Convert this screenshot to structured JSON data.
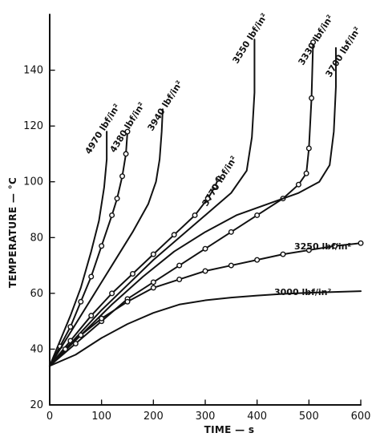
{
  "chart_data": {
    "type": "line",
    "xlabel": "TIME — s",
    "ylabel": "TEMPERATURE — °C",
    "xlim": [
      0,
      600
    ],
    "ylim": [
      20,
      160
    ],
    "xticks": [
      0,
      100,
      200,
      300,
      400,
      500,
      600
    ],
    "yticks": [
      20,
      40,
      60,
      80,
      100,
      120,
      140
    ],
    "series": [
      {
        "name": "4970 lbf/in²",
        "x": [
          0,
          20,
          40,
          60,
          80,
          95,
          105,
          110,
          110
        ],
        "y": [
          34,
          43,
          52,
          62,
          75,
          86,
          98,
          108,
          118
        ],
        "markers": false
      },
      {
        "name": "4380 lbf/in²",
        "x": [
          0,
          20,
          40,
          60,
          80,
          100,
          120,
          130,
          140,
          147,
          150
        ],
        "y": [
          34,
          41,
          48,
          57,
          66,
          77,
          88,
          94,
          102,
          110,
          118
        ],
        "markers": true
      },
      {
        "name": "3940 lbf/in²",
        "x": [
          0,
          40,
          80,
          120,
          160,
          190,
          205,
          212,
          216,
          218
        ],
        "y": [
          34,
          46,
          58,
          70,
          82,
          92,
          100,
          108,
          118,
          126
        ],
        "markers": false
      },
      {
        "name": "3770 lbf/in²",
        "x": [
          0,
          40,
          80,
          120,
          160,
          200,
          240,
          280,
          305,
          318,
          325
        ],
        "y": [
          34,
          43,
          52,
          60,
          67,
          74,
          81,
          88,
          94,
          98,
          101
        ],
        "markers": true
      },
      {
        "name": "3550 lbf/in²",
        "x": [
          0,
          50,
          100,
          150,
          200,
          250,
          300,
          350,
          380,
          390,
          395,
          395
        ],
        "y": [
          34,
          44,
          54,
          63,
          72,
          80,
          88,
          96,
          104,
          116,
          132,
          151
        ],
        "markers": false
      },
      {
        "name": "3330 lbf/in²",
        "x": [
          0,
          50,
          100,
          150,
          200,
          250,
          300,
          350,
          400,
          450,
          480,
          495,
          500,
          505,
          508
        ],
        "y": [
          34,
          42,
          50,
          58,
          64,
          70,
          76,
          82,
          88,
          94,
          99,
          103,
          112,
          130,
          150
        ],
        "markers": true
      },
      {
        "name": "3700 lbf/in²",
        "x": [
          0,
          60,
          120,
          180,
          240,
          300,
          360,
          420,
          480,
          520,
          540,
          548,
          552,
          552
        ],
        "y": [
          34,
          45,
          56,
          66,
          75,
          82,
          88,
          92,
          96,
          100,
          106,
          118,
          134,
          148
        ],
        "markers": false
      },
      {
        "name": "3250 lbf/in²",
        "x": [
          0,
          30,
          60,
          100,
          150,
          200,
          250,
          300,
          350,
          400,
          450,
          500,
          550,
          600
        ],
        "y": [
          34,
          40,
          45,
          51,
          57,
          62,
          65,
          68,
          70,
          72,
          74,
          75.5,
          77,
          78
        ],
        "markers": true
      },
      {
        "name": "3000 lbf/in²",
        "x": [
          0,
          50,
          100,
          150,
          200,
          250,
          300,
          350,
          400,
          450,
          500,
          550,
          600
        ],
        "y": [
          34,
          38,
          44,
          49,
          53,
          56,
          57.5,
          58.5,
          59.2,
          59.8,
          60.2,
          60.5,
          60.8
        ],
        "markers": false
      }
    ]
  }
}
